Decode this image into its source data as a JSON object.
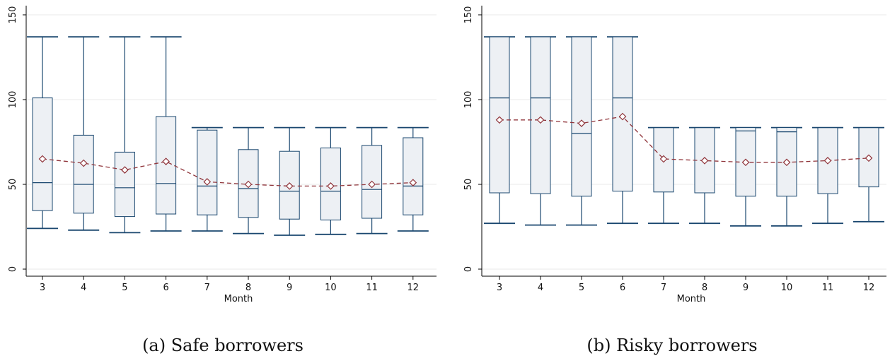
{
  "chart_data": [
    {
      "type": "box",
      "caption": "(a) Safe borrowers",
      "xlabel": "Month",
      "ylabel": "",
      "ylim": [
        0,
        150
      ],
      "yticks": [
        0,
        50,
        100,
        150
      ],
      "categories": [
        "3",
        "4",
        "5",
        "6",
        "7",
        "8",
        "9",
        "10",
        "11",
        "12"
      ],
      "boxes": [
        {
          "whisker_low": 24,
          "q1": 34.5,
          "median": 51,
          "q3": 101,
          "whisker_high": 137
        },
        {
          "whisker_low": 23,
          "q1": 33,
          "median": 50,
          "q3": 79,
          "whisker_high": 137
        },
        {
          "whisker_low": 21.5,
          "q1": 31,
          "median": 48,
          "q3": 69,
          "whisker_high": 137
        },
        {
          "whisker_low": 22.5,
          "q1": 32.5,
          "median": 50.5,
          "q3": 90,
          "whisker_high": 137
        },
        {
          "whisker_low": 22.5,
          "q1": 32,
          "median": 49,
          "q3": 82,
          "whisker_high": 83.5
        },
        {
          "whisker_low": 21,
          "q1": 30.5,
          "median": 47.5,
          "q3": 70.5,
          "whisker_high": 83.5
        },
        {
          "whisker_low": 20,
          "q1": 29.5,
          "median": 46,
          "q3": 69.5,
          "whisker_high": 83.5
        },
        {
          "whisker_low": 20.5,
          "q1": 29,
          "median": 46,
          "q3": 71.5,
          "whisker_high": 83.5
        },
        {
          "whisker_low": 21,
          "q1": 30,
          "median": 47,
          "q3": 73,
          "whisker_high": 83.5
        },
        {
          "whisker_low": 22.5,
          "q1": 32,
          "median": 49,
          "q3": 77.5,
          "whisker_high": 83.5
        }
      ],
      "means": [
        65,
        62.5,
        58.5,
        63.5,
        51.5,
        50,
        49,
        49,
        50,
        51
      ],
      "colors": {
        "box_fill": "#edf0f4",
        "box_line": "#1a476f",
        "mean": "#90353b"
      }
    },
    {
      "type": "box",
      "caption": "(b) Risky borrowers",
      "xlabel": "Month",
      "ylabel": "",
      "ylim": [
        0,
        150
      ],
      "yticks": [
        0,
        50,
        100,
        150
      ],
      "categories": [
        "3",
        "4",
        "5",
        "6",
        "7",
        "8",
        "9",
        "10",
        "11",
        "12"
      ],
      "boxes": [
        {
          "whisker_low": 27,
          "q1": 45,
          "median": 101,
          "q3": 137,
          "whisker_high": 137
        },
        {
          "whisker_low": 26,
          "q1": 44.5,
          "median": 101,
          "q3": 137,
          "whisker_high": 137
        },
        {
          "whisker_low": 26,
          "q1": 43,
          "median": 80,
          "q3": 137,
          "whisker_high": 137
        },
        {
          "whisker_low": 27,
          "q1": 46,
          "median": 101,
          "q3": 137,
          "whisker_high": 137
        },
        {
          "whisker_low": 27,
          "q1": 45.5,
          "median": 83.5,
          "q3": 83.5,
          "whisker_high": 83.5
        },
        {
          "whisker_low": 27,
          "q1": 45,
          "median": 83.5,
          "q3": 83.5,
          "whisker_high": 83.5
        },
        {
          "whisker_low": 25.5,
          "q1": 43,
          "median": 81.5,
          "q3": 83.5,
          "whisker_high": 83.5
        },
        {
          "whisker_low": 25.5,
          "q1": 43,
          "median": 81,
          "q3": 83.5,
          "whisker_high": 83.5
        },
        {
          "whisker_low": 27,
          "q1": 44.5,
          "median": 83.5,
          "q3": 83.5,
          "whisker_high": 83.5
        },
        {
          "whisker_low": 28,
          "q1": 48.5,
          "median": 83.5,
          "q3": 83.5,
          "whisker_high": 83.5
        }
      ],
      "means": [
        88,
        88,
        86,
        90,
        65,
        64,
        63,
        63,
        64,
        65.5
      ],
      "colors": {
        "box_fill": "#edf0f4",
        "box_line": "#1a476f",
        "mean": "#90353b"
      }
    }
  ]
}
